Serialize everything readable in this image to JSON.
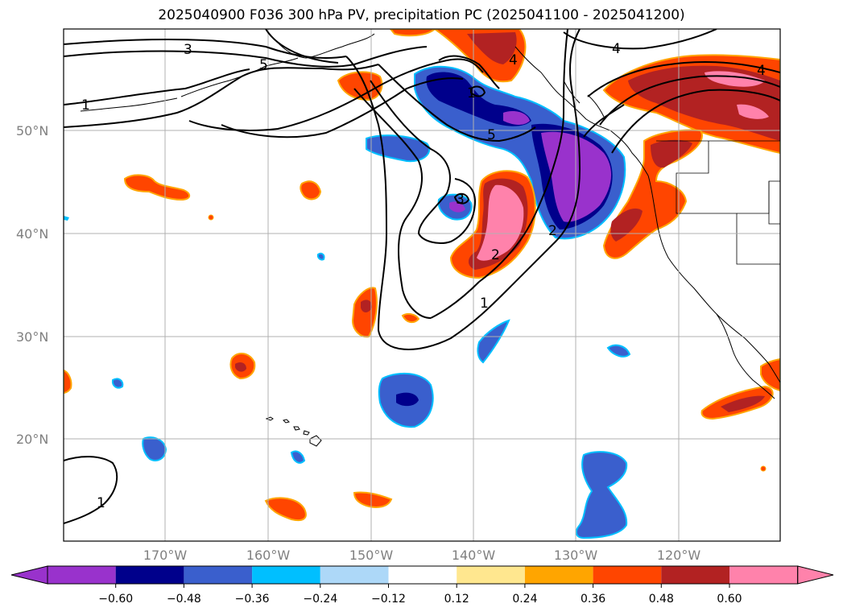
{
  "title": "2025040900 F036 300 hPa PV, precipitation PC (2025041100 - 2025041200)",
  "lat_labels": [
    "50°N",
    "40°N",
    "30°N",
    "20°N"
  ],
  "lon_labels": [
    "170°W",
    "160°W",
    "150°W",
    "140°W",
    "130°W",
    "120°W"
  ],
  "contour_labels": [
    "1",
    "3",
    "5",
    "1",
    "4",
    "4",
    "4",
    "5",
    "3",
    "2",
    "1",
    "1",
    "2"
  ],
  "colorbar": {
    "ticks": [
      "−0.60",
      "−0.48",
      "−0.36",
      "−0.24",
      "−0.12",
      "0.12",
      "0.24",
      "0.36",
      "0.48",
      "0.60"
    ],
    "colors": [
      "#9932cc",
      "#00008b",
      "#3a5fcd",
      "#00bfff",
      "#add8f8",
      "#ffffff",
      "#ffe78f",
      "#ffa500",
      "#ff4500",
      "#b22222",
      "#ff82ab"
    ]
  },
  "colors": {
    "purple": "#9932cc",
    "navy": "#00008b",
    "royal": "#3a5fcd",
    "sky": "#00bfff",
    "lightblue": "#add8f8",
    "yellow": "#ffe78f",
    "orange": "#ffa500",
    "orangered": "#ff4500",
    "firebrick": "#b22222",
    "pink": "#ff82ab",
    "grid": "#b0b0b0"
  }
}
